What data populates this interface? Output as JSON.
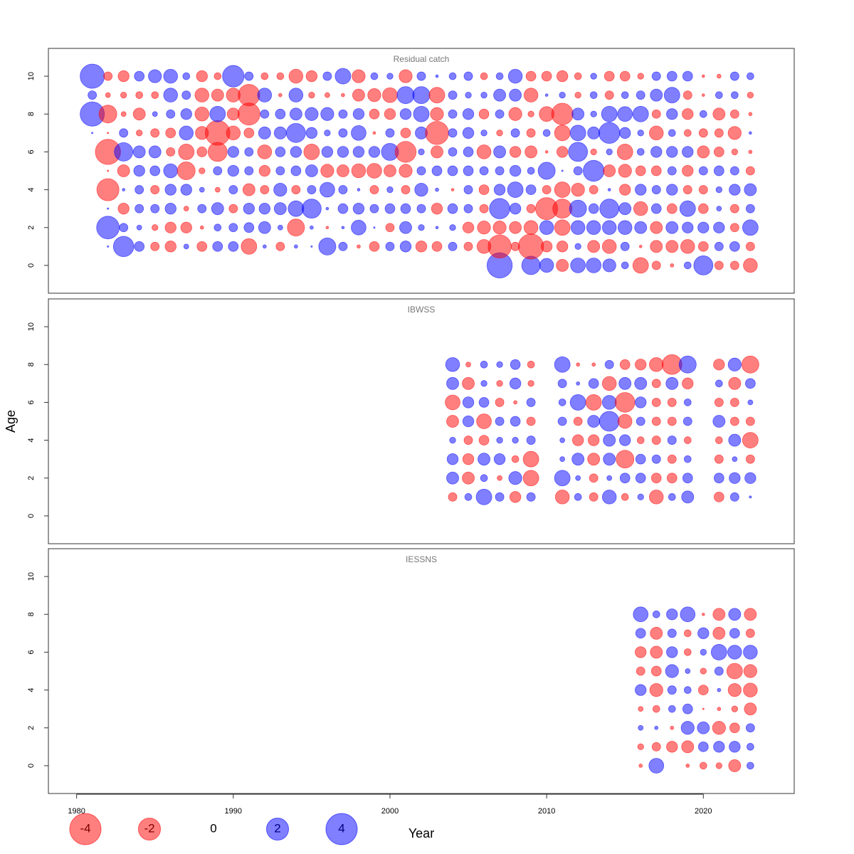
{
  "chart_data": [
    {
      "type": "bubble",
      "title": "Residual catch",
      "x": [
        1981,
        1982,
        1983,
        1984,
        1985,
        1986,
        1987,
        1988,
        1989,
        1990,
        1991,
        1992,
        1993,
        1994,
        1995,
        1996,
        1997,
        1998,
        1999,
        2000,
        2001,
        2002,
        2003,
        2004,
        2005,
        2006,
        2007,
        2008,
        2009,
        2010,
        2011,
        2012,
        2013,
        2014,
        2015,
        2016,
        2017,
        2018,
        2019,
        2020,
        2021,
        2022,
        2023
      ],
      "y": [
        0,
        1,
        2,
        3,
        4,
        5,
        6,
        7,
        8,
        9,
        10
      ],
      "values": [
        [
          null,
          null,
          null,
          null,
          null,
          null,
          null,
          null,
          null,
          null,
          null,
          null,
          null,
          null,
          null,
          null,
          null,
          null,
          null,
          null,
          null,
          null,
          null,
          null,
          null,
          null,
          2.6,
          null,
          1.4,
          0.8,
          -0.6,
          0.9,
          0.9,
          0.7,
          0.2,
          -1.0,
          -0.3,
          -0.05,
          0.2,
          1.5,
          -0.3,
          -0.3,
          -0.8
        ],
        [
          null,
          0.01,
          1.7,
          0.4,
          -0.3,
          -0.5,
          0.1,
          -0.4,
          0.4,
          0.4,
          -1.0,
          0.05,
          -0.3,
          0.05,
          0.01,
          1.2,
          0.3,
          -0.05,
          -0.4,
          0.3,
          0.5,
          -0.5,
          -0.4,
          0.3,
          -0.3,
          -0.8,
          -2.2,
          -0.3,
          -2.6,
          -0.5,
          -0.5,
          0.15,
          -0.6,
          -0.8,
          0.3,
          -0.03,
          -0.6,
          -0.6,
          -0.8,
          -0.4,
          0.3,
          0.4,
          -0.3
        ],
        [
          null,
          2.1,
          0.3,
          0.1,
          -0.15,
          -0.5,
          -0.5,
          -0.05,
          0.2,
          0.3,
          0.4,
          0.6,
          0.1,
          -1.2,
          0.05,
          -0.03,
          0.03,
          0.9,
          0.01,
          -0.3,
          0.6,
          0.15,
          0.03,
          0.15,
          -0.5,
          -0.7,
          -0.7,
          -0.6,
          -0.8,
          0.8,
          -1.0,
          0.8,
          0.8,
          0.8,
          0.8,
          0.6,
          -0.6,
          0.6,
          0.5,
          0.5,
          0.5,
          -0.3,
          1.0
        ],
        [
          null,
          0.01,
          -0.5,
          0.3,
          0.3,
          0.5,
          -0.1,
          0.3,
          0.6,
          -0.3,
          0.5,
          0.5,
          0.6,
          1.0,
          1.5,
          0.03,
          0.4,
          0.5,
          0.3,
          0.4,
          0.4,
          0.3,
          -0.5,
          0.4,
          0.3,
          -0.3,
          1.7,
          0.5,
          -0.3,
          -2.0,
          -1.5,
          1.2,
          0.4,
          1.5,
          0.6,
          -0.8,
          0.4,
          -0.4,
          1.0,
          -0.4,
          0.1,
          -0.3,
          0.3
        ],
        [
          null,
          -2.0,
          0.03,
          0.3,
          -0.3,
          0.5,
          0.5,
          0.1,
          -0.1,
          0.3,
          -0.6,
          -0.3,
          0.7,
          -0.3,
          0.3,
          0.9,
          0.3,
          0.03,
          -0.3,
          0.15,
          -0.3,
          0.7,
          0.05,
          -0.03,
          0.3,
          -0.4,
          0.5,
          1.0,
          0.4,
          -0.3,
          -1.0,
          -0.7,
          -0.3,
          0.03,
          -0.5,
          0.5,
          0.3,
          0.5,
          -0.3,
          -0.3,
          0.15,
          0.5,
          0.6
        ],
        [
          null,
          -0.01,
          -0.6,
          0.5,
          0.4,
          0.8,
          -1.3,
          -0.15,
          0.3,
          0.5,
          0.3,
          -0.5,
          0.3,
          0.4,
          0.6,
          -0.7,
          -0.6,
          -0.8,
          -0.9,
          -0.6,
          -0.7,
          0.3,
          0.4,
          0.4,
          0.4,
          0.3,
          0.3,
          0.5,
          0.2,
          1.2,
          0.01,
          0.3,
          1.8,
          -0.6,
          -0.7,
          -0.4,
          -0.4,
          0.3,
          -0.5,
          0.3,
          0.4,
          0.3,
          -0.3
        ],
        [
          null,
          -2.6,
          1.4,
          0.6,
          0.6,
          -0.3,
          -1.0,
          -0.4,
          -1.5,
          0.5,
          0.3,
          -0.8,
          0.4,
          0.5,
          -1.0,
          0.5,
          0.5,
          0.5,
          0.5,
          1.2,
          -1.8,
          0.15,
          -0.6,
          0.3,
          0.4,
          -0.8,
          0.6,
          -0.5,
          -0.6,
          -0.03,
          -0.5,
          1.5,
          -0.15,
          0.15,
          -1.0,
          0.2,
          0.5,
          0.5,
          0.5,
          -0.6,
          -0.4,
          -0.15,
          -0.05
        ],
        [
          0.01,
          -0.01,
          0.3,
          -0.15,
          -0.3,
          -0.4,
          0.8,
          -0.7,
          -2.5,
          -0.8,
          -0.4,
          0.6,
          0.6,
          1.5,
          0.5,
          0.15,
          0.3,
          0.9,
          -0.03,
          0.3,
          -0.4,
          0.6,
          -2.2,
          0.3,
          0.5,
          0.15,
          -0.15,
          0.3,
          -0.3,
          0.2,
          -1.0,
          1.0,
          0.6,
          1.8,
          0.5,
          0.15,
          -0.8,
          0.2,
          -0.2,
          -0.3,
          -0.3,
          -0.7,
          0.03
        ],
        [
          2.4,
          -1.3,
          -0.1,
          -0.6,
          0.1,
          0.3,
          0.5,
          -0.8,
          1.0,
          -0.6,
          -2.0,
          0.3,
          0.4,
          0.6,
          0.7,
          0.7,
          0.3,
          0.5,
          -0.4,
          -0.5,
          0.5,
          1.0,
          -0.7,
          0.3,
          0.5,
          -0.4,
          0.3,
          -0.7,
          -0.15,
          -0.9,
          -1.9,
          0.6,
          0.15,
          1.0,
          0.9,
          1.0,
          -0.3,
          0.5,
          -0.5,
          0.2,
          -0.6,
          -0.3,
          -0.05
        ],
        [
          0.3,
          -0.1,
          -0.15,
          -0.2,
          -0.2,
          0.8,
          0.3,
          -0.8,
          -0.6,
          -0.8,
          -1.9,
          0.8,
          -0.05,
          0.8,
          -0.15,
          -0.1,
          -0.05,
          -0.6,
          -0.7,
          -0.9,
          1.2,
          1.2,
          -1.0,
          0.3,
          0.15,
          0.15,
          0.6,
          0.6,
          -0.8,
          0.03,
          0.15,
          -0.15,
          0.2,
          -0.3,
          0.2,
          0.3,
          0.6,
          1.0,
          -0.3,
          -0.03,
          0.2,
          0.2,
          -0.15
        ],
        [
          2.4,
          -0.3,
          -0.5,
          0.4,
          0.7,
          0.8,
          0.2,
          -0.5,
          -0.2,
          1.9,
          0.3,
          -0.2,
          -0.2,
          -0.8,
          -0.5,
          0.3,
          1.0,
          -0.7,
          0.2,
          0.15,
          -0.7,
          0.3,
          0.03,
          0.2,
          0.3,
          -0.2,
          0.2,
          0.8,
          -0.4,
          -0.4,
          -0.5,
          -0.2,
          0.15,
          -0.4,
          -0.4,
          -0.15,
          0.3,
          0.4,
          0.4,
          -0.03,
          -0.07,
          0.3,
          0.2
        ]
      ],
      "xlim": [
        1978.2,
        2025.8
      ],
      "ylim": [
        -1.47,
        11.47
      ],
      "yticks": [
        0,
        2,
        4,
        6,
        8,
        10
      ],
      "colors": {
        "positive": "#0000ff",
        "negative": "#ff0000"
      }
    },
    {
      "type": "bubble",
      "title": "IBWSS",
      "ylabel": "Age",
      "x": [
        2004,
        2005,
        2006,
        2007,
        2008,
        2009,
        2010,
        2011,
        2012,
        2013,
        2014,
        2015,
        2016,
        2017,
        2018,
        2019,
        2020,
        2021,
        2022,
        2023
      ],
      "y": [
        1,
        2,
        3,
        4,
        5,
        6,
        7,
        8
      ],
      "values": [
        [
          -0.3,
          0.2,
          1.0,
          0.3,
          -0.5,
          0.3,
          null,
          -0.8,
          0.2,
          -0.3,
          0.8,
          -0.2,
          0.15,
          -0.8,
          0.2,
          0.6,
          null,
          -0.4,
          0.3,
          0.02
        ],
        [
          0.6,
          -0.6,
          0.2,
          -0.1,
          0.7,
          -1.0,
          null,
          1.0,
          0.1,
          -0.3,
          0.1,
          0.4,
          0.4,
          -0.4,
          -0.4,
          0.4,
          null,
          0.4,
          0.5,
          0.5
        ],
        [
          0.5,
          -0.5,
          0.6,
          0.5,
          -0.2,
          -1.0,
          null,
          0.1,
          0.6,
          -0.6,
          0.6,
          -1.3,
          0.4,
          0.3,
          -0.3,
          0.2,
          null,
          -0.3,
          0.1,
          -0.3
        ],
        [
          0.15,
          -0.3,
          -0.4,
          0.15,
          0.15,
          0.3,
          null,
          0.1,
          -0.5,
          -0.5,
          0.6,
          0.5,
          -0.2,
          -0.3,
          0.3,
          -0.2,
          null,
          -0.2,
          0.6,
          -1.0
        ],
        [
          -0.6,
          0.5,
          -0.9,
          0.3,
          0.4,
          -0.3,
          null,
          0.3,
          -0.3,
          0.6,
          1.6,
          -0.8,
          0.3,
          -0.3,
          -0.3,
          0.3,
          null,
          0.6,
          -0.3,
          -0.3
        ],
        [
          -0.9,
          0.5,
          0.4,
          -0.3,
          -0.05,
          0.3,
          null,
          0.2,
          1.0,
          -1.0,
          0.8,
          -1.6,
          0.5,
          -0.3,
          -0.3,
          0.2,
          null,
          -0.3,
          -0.3,
          0.1
        ],
        [
          0.6,
          -0.6,
          0.15,
          -0.15,
          0.5,
          -0.15,
          null,
          0.3,
          0.05,
          0.4,
          -0.8,
          0.6,
          0.6,
          -0.3,
          0.6,
          -0.5,
          null,
          0.2,
          -0.6,
          0.4
        ],
        [
          0.8,
          -0.1,
          0.2,
          0.15,
          0.4,
          -0.2,
          null,
          1.0,
          -0.05,
          -0.05,
          0.3,
          -0.4,
          -0.5,
          -0.8,
          -1.6,
          1.2,
          null,
          -0.5,
          0.7,
          -1.2
        ]
      ],
      "xlim": [
        1978.2,
        2025.8
      ],
      "ylim": [
        -1.47,
        11.47
      ],
      "yticks": [
        0,
        2,
        4,
        6,
        8,
        10
      ],
      "colors": {
        "positive": "#0000ff",
        "negative": "#ff0000"
      }
    },
    {
      "type": "bubble",
      "title": "IESSNS",
      "xlabel": "Year",
      "x": [
        2016,
        2017,
        2018,
        2019,
        2020,
        2021,
        2022,
        2023
      ],
      "y": [
        0,
        1,
        2,
        3,
        4,
        5,
        6,
        7,
        8
      ],
      "values": [
        [
          -0.05,
          0.9,
          null,
          -0.05,
          -0.2,
          -0.15,
          -0.6,
          0.2
        ],
        [
          -0.15,
          -0.3,
          -0.5,
          -0.6,
          0.4,
          0.5,
          0.5,
          0.2
        ],
        [
          0.1,
          0.05,
          -0.05,
          0.7,
          0.6,
          -0.7,
          -0.4,
          0.3
        ],
        [
          -0.1,
          -0.2,
          0.2,
          0.4,
          -0.01,
          -0.05,
          -0.15,
          -0.6
        ],
        [
          0.5,
          -0.7,
          0.3,
          0.2,
          -0.4,
          0.05,
          -0.7,
          -0.8
        ],
        [
          -0.3,
          -0.4,
          0.7,
          0.1,
          -0.15,
          0.3,
          -1.0,
          -0.7
        ],
        [
          -0.5,
          -0.6,
          0.5,
          -0.2,
          0.15,
          1.0,
          0.8,
          0.8
        ],
        [
          0.4,
          -0.6,
          0.3,
          -0.2,
          0.5,
          -0.6,
          0.4,
          -0.3
        ],
        [
          0.9,
          0.2,
          0.5,
          0.9,
          -0.03,
          -0.6,
          0.6,
          -0.6
        ]
      ],
      "xlim": [
        1978.2,
        2025.8
      ],
      "ylim": [
        -1.47,
        11.47
      ],
      "yticks": [
        0,
        2,
        4,
        6,
        8,
        10
      ],
      "xticks": [
        1980,
        1990,
        2000,
        2010,
        2020
      ],
      "legend": {
        "values": [
          -4,
          -2,
          0,
          2,
          4
        ]
      },
      "colors": {
        "positive": "#0000ff",
        "negative": "#ff0000"
      }
    }
  ]
}
